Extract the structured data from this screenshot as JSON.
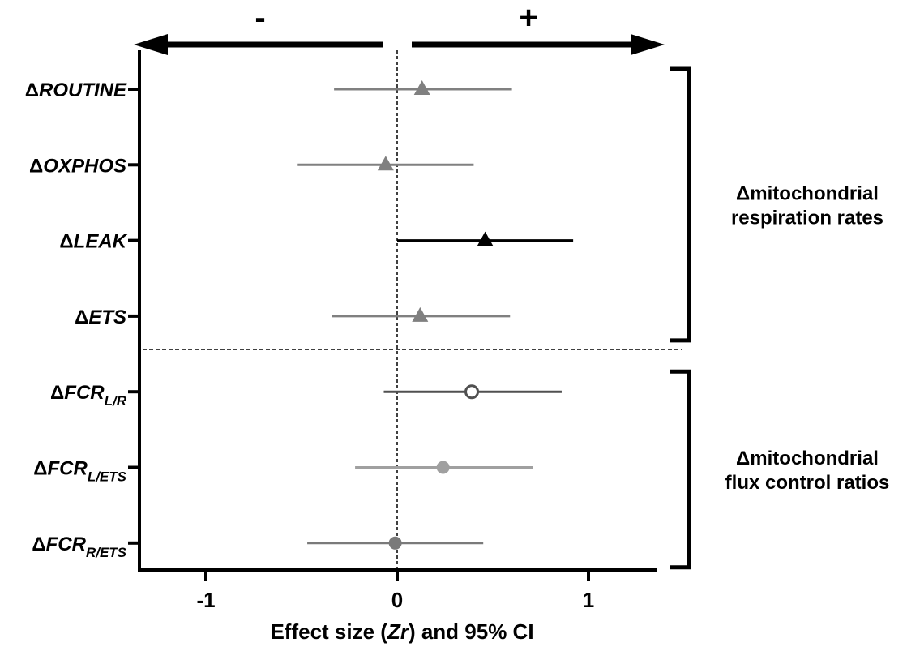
{
  "chart_data": {
    "type": "scatter",
    "subtype": "forest-plot",
    "xlabel": {
      "prefix": "Effect size (",
      "italic": "Zr",
      "suffix": ") and 95% CI"
    },
    "xlim": [
      -1.35,
      1.35
    ],
    "xticks": [
      -1,
      0,
      1
    ],
    "xtick_labels": [
      "-1",
      "0",
      "1"
    ],
    "reference_line_x": 0,
    "direction_labels": {
      "negative": "-",
      "positive": "+"
    },
    "grid": false,
    "rows": [
      {
        "delta": "Δ",
        "name": "ROUTINE",
        "sub": "",
        "estimate": 0.13,
        "ci_low": -0.33,
        "ci_high": 0.6,
        "marker": "triangle",
        "filled": true,
        "color": "#808080",
        "significant": false
      },
      {
        "delta": "Δ",
        "name": "OXPHOS",
        "sub": "",
        "estimate": -0.06,
        "ci_low": -0.52,
        "ci_high": 0.4,
        "marker": "triangle",
        "filled": true,
        "color": "#808080",
        "significant": false
      },
      {
        "delta": "Δ",
        "name": "LEAK",
        "sub": "",
        "estimate": 0.46,
        "ci_low": 0.0,
        "ci_high": 0.92,
        "marker": "triangle",
        "filled": true,
        "color": "#000000",
        "significant": true
      },
      {
        "delta": "Δ",
        "name": "ETS",
        "sub": "",
        "estimate": 0.12,
        "ci_low": -0.34,
        "ci_high": 0.59,
        "marker": "triangle",
        "filled": true,
        "color": "#808080",
        "significant": false
      },
      {
        "delta": "Δ",
        "name": "FCR",
        "sub": "L/R",
        "estimate": 0.39,
        "ci_low": -0.07,
        "ci_high": 0.86,
        "marker": "circle",
        "filled": false,
        "color": "#505050",
        "significant": false
      },
      {
        "delta": "Δ",
        "name": "FCR",
        "sub": "L/ETS",
        "estimate": 0.24,
        "ci_low": -0.22,
        "ci_high": 0.71,
        "marker": "circle",
        "filled": true,
        "color": "#a0a0a0",
        "significant": false
      },
      {
        "delta": "Δ",
        "name": "FCR",
        "sub": "R/ETS",
        "estimate": -0.01,
        "ci_low": -0.47,
        "ci_high": 0.45,
        "marker": "circle",
        "filled": true,
        "color": "#7a7a7a",
        "significant": false
      }
    ],
    "groups": [
      {
        "label_lines": [
          "Δmitochondrial",
          "respiration rates"
        ],
        "first_row": 0,
        "last_row": 3
      },
      {
        "label_lines": [
          "Δmitochondrial",
          "flux control ratios"
        ],
        "first_row": 4,
        "last_row": 6
      }
    ]
  }
}
